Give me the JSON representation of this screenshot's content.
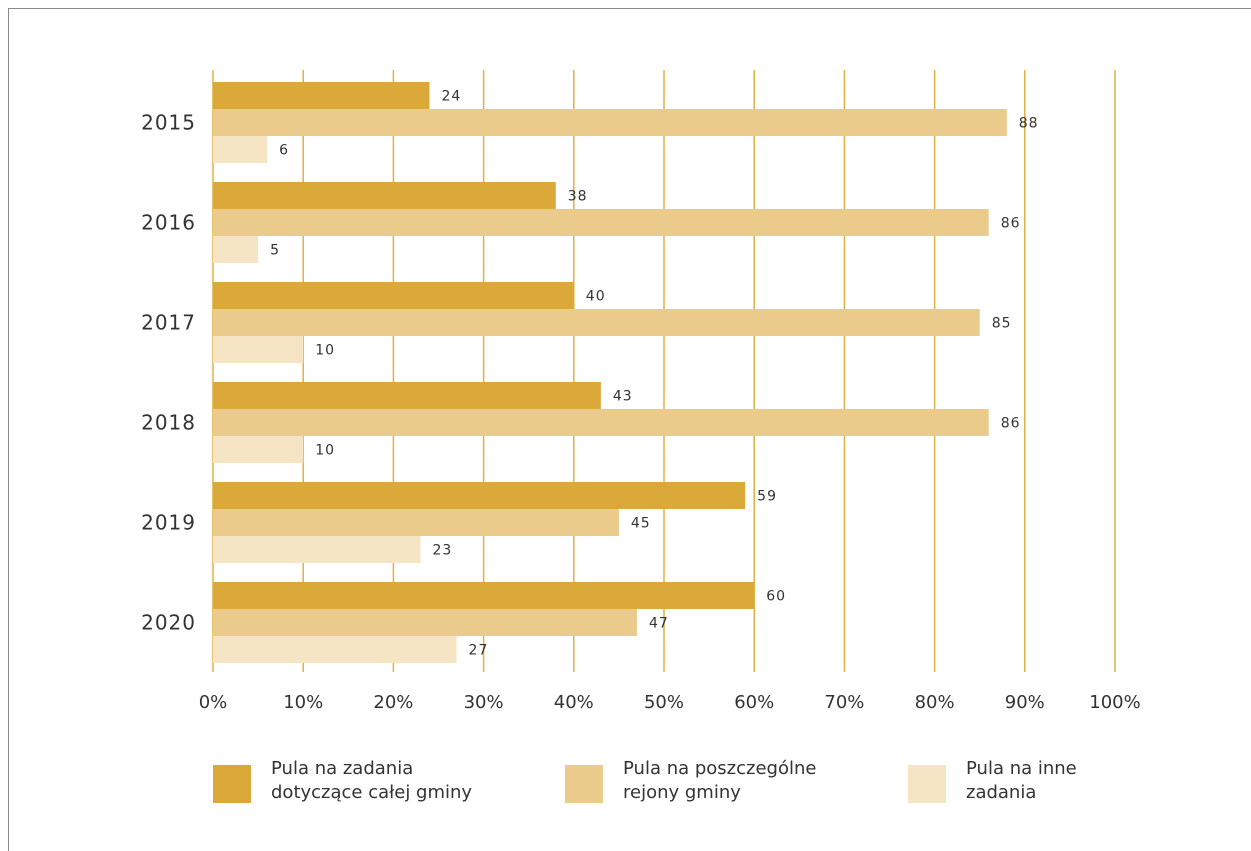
{
  "chart_data": {
    "type": "bar",
    "orientation": "horizontal",
    "categories": [
      "2015",
      "2016",
      "2017",
      "2018",
      "2019",
      "2020"
    ],
    "series": [
      {
        "name": "Pula na zadania\ndotyczące całej gminy",
        "color": "#dba83a",
        "values": [
          24,
          38,
          40,
          43,
          59,
          60
        ]
      },
      {
        "name": "Pula na poszczególne\nrejony gminy",
        "color": "#ebcb8b",
        "values": [
          88,
          86,
          85,
          86,
          45,
          47
        ]
      },
      {
        "name": "Pula na inne\nzadania",
        "color": "#f5e5c4",
        "values": [
          6,
          5,
          10,
          10,
          23,
          27
        ]
      }
    ],
    "x_ticks": [
      "0%",
      "10%",
      "20%",
      "30%",
      "40%",
      "50%",
      "60%",
      "70%",
      "80%",
      "90%",
      "100%"
    ],
    "xlim": [
      0,
      100
    ],
    "grid": "vertical",
    "grid_color": "#e0b040",
    "legend_position": "bottom"
  },
  "legend": [
    {
      "label": "Pula na zadania\ndotyczące całej gminy"
    },
    {
      "label": "Pula na poszczególne\nrejony gminy"
    },
    {
      "label": "Pula na inne\nzadania"
    }
  ]
}
